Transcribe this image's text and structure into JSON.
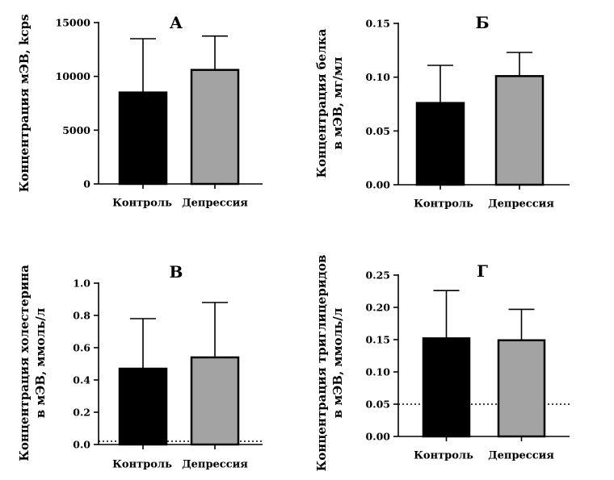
{
  "colors": {
    "control": "#000000",
    "depression": "#a3a3a3",
    "axis": "#000000"
  },
  "chart_data": [
    {
      "type": "bar",
      "title": "А",
      "ylabel": [
        "Концентрация мЭВ, kcps"
      ],
      "categories": [
        "Контроль",
        "Депрессия"
      ],
      "values": [
        8500,
        10600
      ],
      "errors": [
        5000,
        3150
      ],
      "ylim": [
        0,
        15000
      ],
      "yticks": [
        0,
        5000,
        10000,
        15000
      ],
      "ytick_labels": [
        "0",
        "5000",
        "10000",
        "15000"
      ],
      "reference_line": null
    },
    {
      "type": "bar",
      "title": "Б",
      "ylabel": [
        "Концентрация белка",
        "в мЭВ, мг/мл"
      ],
      "categories": [
        "Контроль",
        "Депрессия"
      ],
      "values": [
        0.076,
        0.101
      ],
      "errors": [
        0.035,
        0.022
      ],
      "ylim": [
        0,
        0.15
      ],
      "yticks": [
        0,
        0.05,
        0.1,
        0.15
      ],
      "ytick_labels": [
        "0.00",
        "0.05",
        "0.10",
        "0.15"
      ],
      "reference_line": null
    },
    {
      "type": "bar",
      "title": "В",
      "ylabel": [
        "Концентрация холестерина",
        "в мЭВ, ммоль/л"
      ],
      "categories": [
        "Контроль",
        "Депрессия"
      ],
      "values": [
        0.47,
        0.54
      ],
      "errors": [
        0.31,
        0.34
      ],
      "ylim": [
        0,
        1.0
      ],
      "yticks": [
        0,
        0.2,
        0.4,
        0.6,
        0.8,
        1.0
      ],
      "ytick_labels": [
        "0.0",
        "0.2",
        "0.4",
        "0.6",
        "0.8",
        "1.0"
      ],
      "reference_line": 0.02
    },
    {
      "type": "bar",
      "title": "Г",
      "ylabel": [
        "Концентрация триглицеридов",
        "в мЭВ, ммоль/л"
      ],
      "categories": [
        "Контроль",
        "Депрессия"
      ],
      "values": [
        0.152,
        0.149
      ],
      "errors": [
        0.074,
        0.048
      ],
      "ylim": [
        0,
        0.25
      ],
      "yticks": [
        0,
        0.05,
        0.1,
        0.15,
        0.2,
        0.25
      ],
      "ytick_labels": [
        "0.00",
        "0.05",
        "0.10",
        "0.15",
        "0.20",
        "0.25"
      ],
      "reference_line": 0.05
    }
  ]
}
